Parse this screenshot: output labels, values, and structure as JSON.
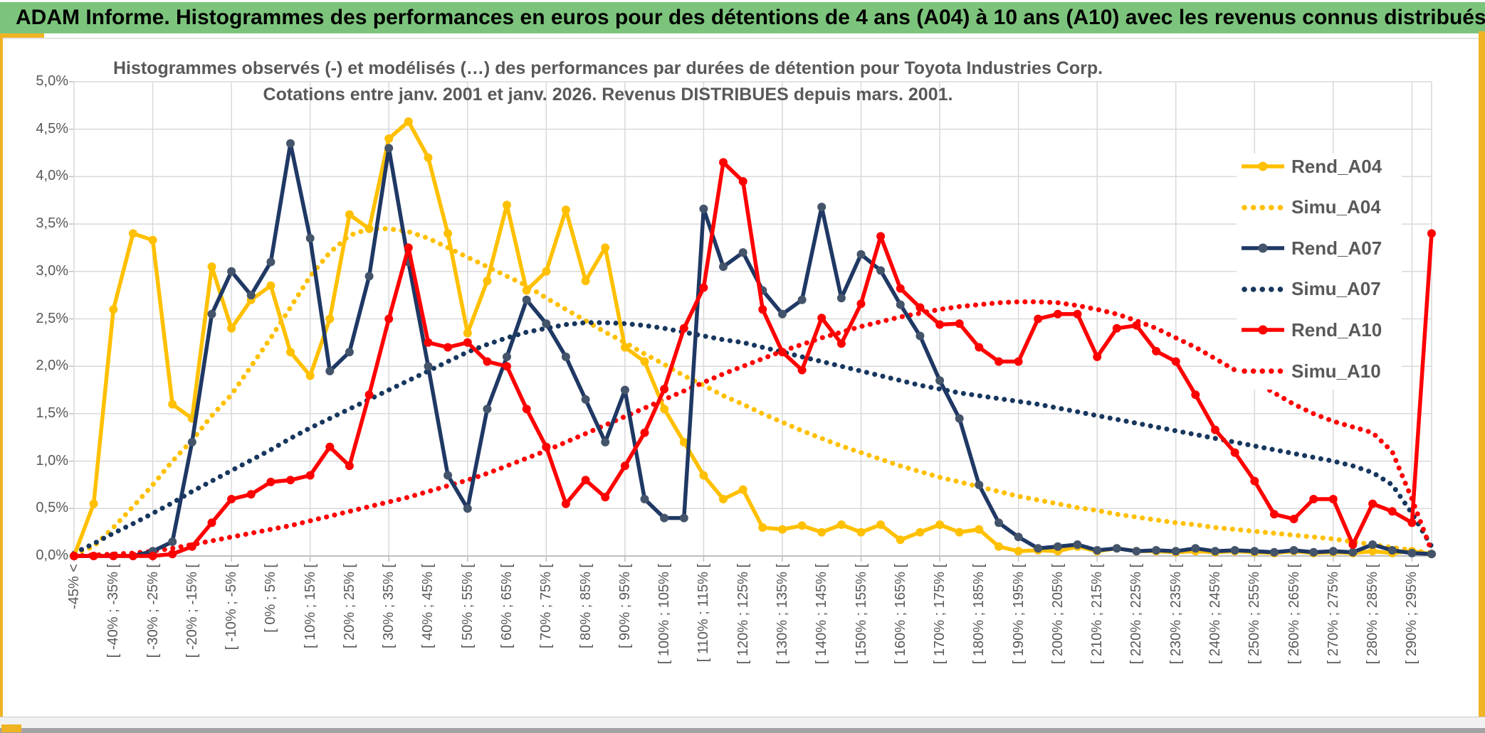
{
  "header": {
    "title": "ADAM Informe. Histogrammes des performances en euros pour des détentions de 4 ans (A04) à 10 ans (A10) avec les revenus connus distribués"
  },
  "colors": {
    "header_green": "#7CC47C",
    "accent_gold": "#F0B323",
    "grid": "#D9D9D9",
    "axis_line": "#BFBFBF",
    "text_gray": "#595959",
    "series_gold": "#FFC000",
    "series_navy": "#1F3864",
    "series_navy_marker": "#44546A",
    "series_red": "#FF0000"
  },
  "chart_data": {
    "type": "line",
    "title_line1": "Histogrammes observés (-) et modélisés (…) des performances par durées de détention pour Toyota Industries Corp.",
    "title_line2": "Cotations entre janv. 2001 et janv. 2026. Revenus DISTRIBUES depuis mars. 2001.",
    "ylim": [
      0,
      5
    ],
    "ytick_step": 0.5,
    "grid": true,
    "legend_position": "right",
    "ytick_labels": [
      "0,0%",
      "0,5%",
      "1,0%",
      "1,5%",
      "2,0%",
      "2,5%",
      "3,0%",
      "3,5%",
      "4,0%",
      "4,5%",
      "5,0%"
    ],
    "n_bins": 70,
    "x_major_label_every": 2,
    "x_major_labels": [
      "-45% <",
      "[ -40% ; -35% [",
      "[ -30% ; -25% [",
      "[ -20% ; -15% [",
      "[ -10% ; -5% [",
      "[ 0% ; 5% [",
      "[ 10% ; 15% [",
      "[ 20% ; 25% [",
      "[ 30% ; 35% [",
      "[ 40% ; 45% [",
      "[ 50% ; 55% [",
      "[ 60% ; 65% [",
      "[ 70% ; 75% [",
      "[ 80% ; 85% [",
      "[ 90% ; 95% [",
      "[ 100% ; 105% [",
      "[ 110% ; 115% [",
      "[ 120% ; 125% [",
      "[ 130% ; 135% [",
      "[ 140% ; 145% [",
      "[ 150% ; 155% [",
      "[ 160% ; 165% [",
      "[ 170% ; 175% [",
      "[ 180% ; 185% [",
      "[ 190% ; 195% [",
      "[ 200% ; 205% [",
      "[ 210% ; 215% [",
      "[ 220% ; 225% [",
      "[ 230% ; 235% [",
      "[ 240% ; 245% [",
      "[ 250% ; 255% [",
      "[ 260% ; 265% [",
      "[ 270% ; 275% [",
      "[ 280% ; 285% [",
      "[ 290% ; 295% ["
    ],
    "legend": [
      {
        "label": "Rend_A04",
        "style": "solid",
        "color": "#FFC000",
        "marker_color": "#FFC000"
      },
      {
        "label": "Simu_A04",
        "style": "dotted",
        "color": "#FFC000",
        "marker_color": "#FFC000"
      },
      {
        "label": "Rend_A07",
        "style": "solid",
        "color": "#1F3864",
        "marker_color": "#44546A"
      },
      {
        "label": "Simu_A07",
        "style": "dotted",
        "color": "#17375E",
        "marker_color": "#17375E"
      },
      {
        "label": "Rend_A10",
        "style": "solid",
        "color": "#FF0000",
        "marker_color": "#FF0000"
      },
      {
        "label": "Simu_A10",
        "style": "dotted",
        "color": "#FF0000",
        "marker_color": "#FF0000"
      }
    ],
    "series": [
      {
        "name": "Simu_A04",
        "style": "dotted",
        "color": "#FFC000",
        "values": [
          0.02,
          0.1,
          0.3,
          0.52,
          0.75,
          1.0,
          1.22,
          1.48,
          1.7,
          2.0,
          2.3,
          2.62,
          2.95,
          3.2,
          3.38,
          3.45,
          3.45,
          3.42,
          3.35,
          3.25,
          3.15,
          3.05,
          2.95,
          2.85,
          2.72,
          2.6,
          2.48,
          2.36,
          2.25,
          2.13,
          2.02,
          1.9,
          1.8,
          1.69,
          1.6,
          1.5,
          1.41,
          1.32,
          1.24,
          1.16,
          1.09,
          1.02,
          0.95,
          0.89,
          0.83,
          0.78,
          0.73,
          0.68,
          0.63,
          0.59,
          0.55,
          0.51,
          0.48,
          0.44,
          0.41,
          0.38,
          0.35,
          0.33,
          0.3,
          0.28,
          0.26,
          0.24,
          0.22,
          0.2,
          0.18,
          0.15,
          0.12,
          0.09,
          0.06,
          0.03
        ]
      },
      {
        "name": "Simu_A07",
        "style": "dotted",
        "color": "#17375E",
        "values": [
          0.03,
          0.13,
          0.24,
          0.34,
          0.45,
          0.56,
          0.68,
          0.79,
          0.9,
          1.01,
          1.12,
          1.24,
          1.35,
          1.45,
          1.55,
          1.65,
          1.75,
          1.85,
          1.95,
          2.05,
          2.15,
          2.23,
          2.3,
          2.36,
          2.4,
          2.44,
          2.46,
          2.46,
          2.45,
          2.43,
          2.4,
          2.36,
          2.32,
          2.28,
          2.25,
          2.2,
          2.15,
          2.1,
          2.05,
          2.0,
          1.95,
          1.9,
          1.85,
          1.8,
          1.76,
          1.72,
          1.69,
          1.66,
          1.63,
          1.6,
          1.56,
          1.52,
          1.48,
          1.44,
          1.4,
          1.36,
          1.32,
          1.28,
          1.24,
          1.2,
          1.16,
          1.12,
          1.08,
          1.04,
          1.0,
          0.95,
          0.88,
          0.75,
          0.45,
          0.1
        ]
      },
      {
        "name": "Simu_A10",
        "style": "dotted",
        "color": "#FF0000",
        "values": [
          0.0,
          0.01,
          0.02,
          0.03,
          0.05,
          0.08,
          0.12,
          0.16,
          0.2,
          0.24,
          0.28,
          0.32,
          0.37,
          0.42,
          0.47,
          0.52,
          0.57,
          0.62,
          0.68,
          0.74,
          0.8,
          0.87,
          0.95,
          1.03,
          1.11,
          1.2,
          1.29,
          1.38,
          1.47,
          1.56,
          1.65,
          1.74,
          1.83,
          1.92,
          2.0,
          2.08,
          2.16,
          2.23,
          2.3,
          2.36,
          2.42,
          2.47,
          2.52,
          2.56,
          2.6,
          2.63,
          2.65,
          2.67,
          2.68,
          2.68,
          2.67,
          2.64,
          2.6,
          2.55,
          2.48,
          2.4,
          2.3,
          2.2,
          2.08,
          1.96,
          1.84,
          1.72,
          1.6,
          1.5,
          1.42,
          1.36,
          1.3,
          1.1,
          0.6,
          0.05
        ]
      },
      {
        "name": "Rend_A04",
        "style": "solid",
        "color": "#FFC000",
        "marker_color": "#FFC000",
        "values": [
          0.0,
          0.55,
          2.6,
          3.4,
          3.33,
          1.6,
          1.45,
          3.05,
          2.4,
          2.7,
          2.85,
          2.15,
          1.9,
          2.5,
          3.6,
          3.45,
          4.4,
          4.58,
          4.2,
          3.4,
          2.35,
          2.9,
          3.7,
          2.8,
          3.0,
          3.65,
          2.9,
          3.25,
          2.2,
          2.05,
          1.55,
          1.2,
          0.85,
          0.6,
          0.7,
          0.3,
          0.28,
          0.32,
          0.25,
          0.33,
          0.25,
          0.33,
          0.17,
          0.25,
          0.33,
          0.25,
          0.28,
          0.1,
          0.05,
          0.06,
          0.05,
          0.1,
          0.05,
          0.08,
          0.05,
          0.05,
          0.04,
          0.05,
          0.04,
          0.05,
          0.04,
          0.03,
          0.05,
          0.03,
          0.04,
          0.03,
          0.05,
          0.03,
          0.05,
          0.02
        ]
      },
      {
        "name": "Rend_A07",
        "style": "solid",
        "color": "#1F3864",
        "marker_color": "#44546A",
        "values": [
          0.0,
          0.0,
          0.0,
          0.0,
          0.05,
          0.15,
          1.2,
          2.55,
          3.0,
          2.75,
          3.1,
          4.35,
          3.35,
          1.95,
          2.15,
          2.95,
          4.3,
          3.1,
          2.0,
          0.85,
          0.5,
          1.55,
          2.1,
          2.7,
          2.45,
          2.1,
          1.65,
          1.2,
          1.75,
          0.6,
          0.4,
          0.4,
          3.66,
          3.05,
          3.2,
          2.8,
          2.55,
          2.7,
          3.68,
          2.72,
          3.18,
          3.01,
          2.65,
          2.32,
          1.85,
          1.45,
          0.75,
          0.35,
          0.2,
          0.08,
          0.1,
          0.12,
          0.06,
          0.08,
          0.05,
          0.06,
          0.05,
          0.08,
          0.05,
          0.06,
          0.05,
          0.04,
          0.06,
          0.04,
          0.05,
          0.04,
          0.12,
          0.06,
          0.03,
          0.02
        ]
      },
      {
        "name": "Rend_A10",
        "style": "solid",
        "color": "#FF0000",
        "marker_color": "#FF0000",
        "values": [
          0.0,
          0.0,
          0.0,
          0.0,
          0.0,
          0.02,
          0.1,
          0.35,
          0.6,
          0.65,
          0.78,
          0.8,
          0.85,
          1.15,
          0.95,
          1.7,
          2.5,
          3.25,
          2.25,
          2.2,
          2.25,
          2.05,
          2.0,
          1.55,
          1.15,
          0.55,
          0.8,
          0.62,
          0.95,
          1.3,
          1.76,
          2.4,
          2.83,
          4.15,
          3.95,
          2.6,
          2.15,
          1.96,
          2.51,
          2.24,
          2.66,
          3.37,
          2.82,
          2.62,
          2.44,
          2.45,
          2.2,
          2.05,
          2.05,
          2.5,
          2.55,
          2.55,
          2.1,
          2.4,
          2.43,
          2.16,
          2.05,
          1.7,
          1.33,
          1.09,
          0.79,
          0.44,
          0.39,
          0.6,
          0.6,
          0.12,
          0.55,
          0.47,
          0.35,
          3.4
        ]
      }
    ]
  }
}
